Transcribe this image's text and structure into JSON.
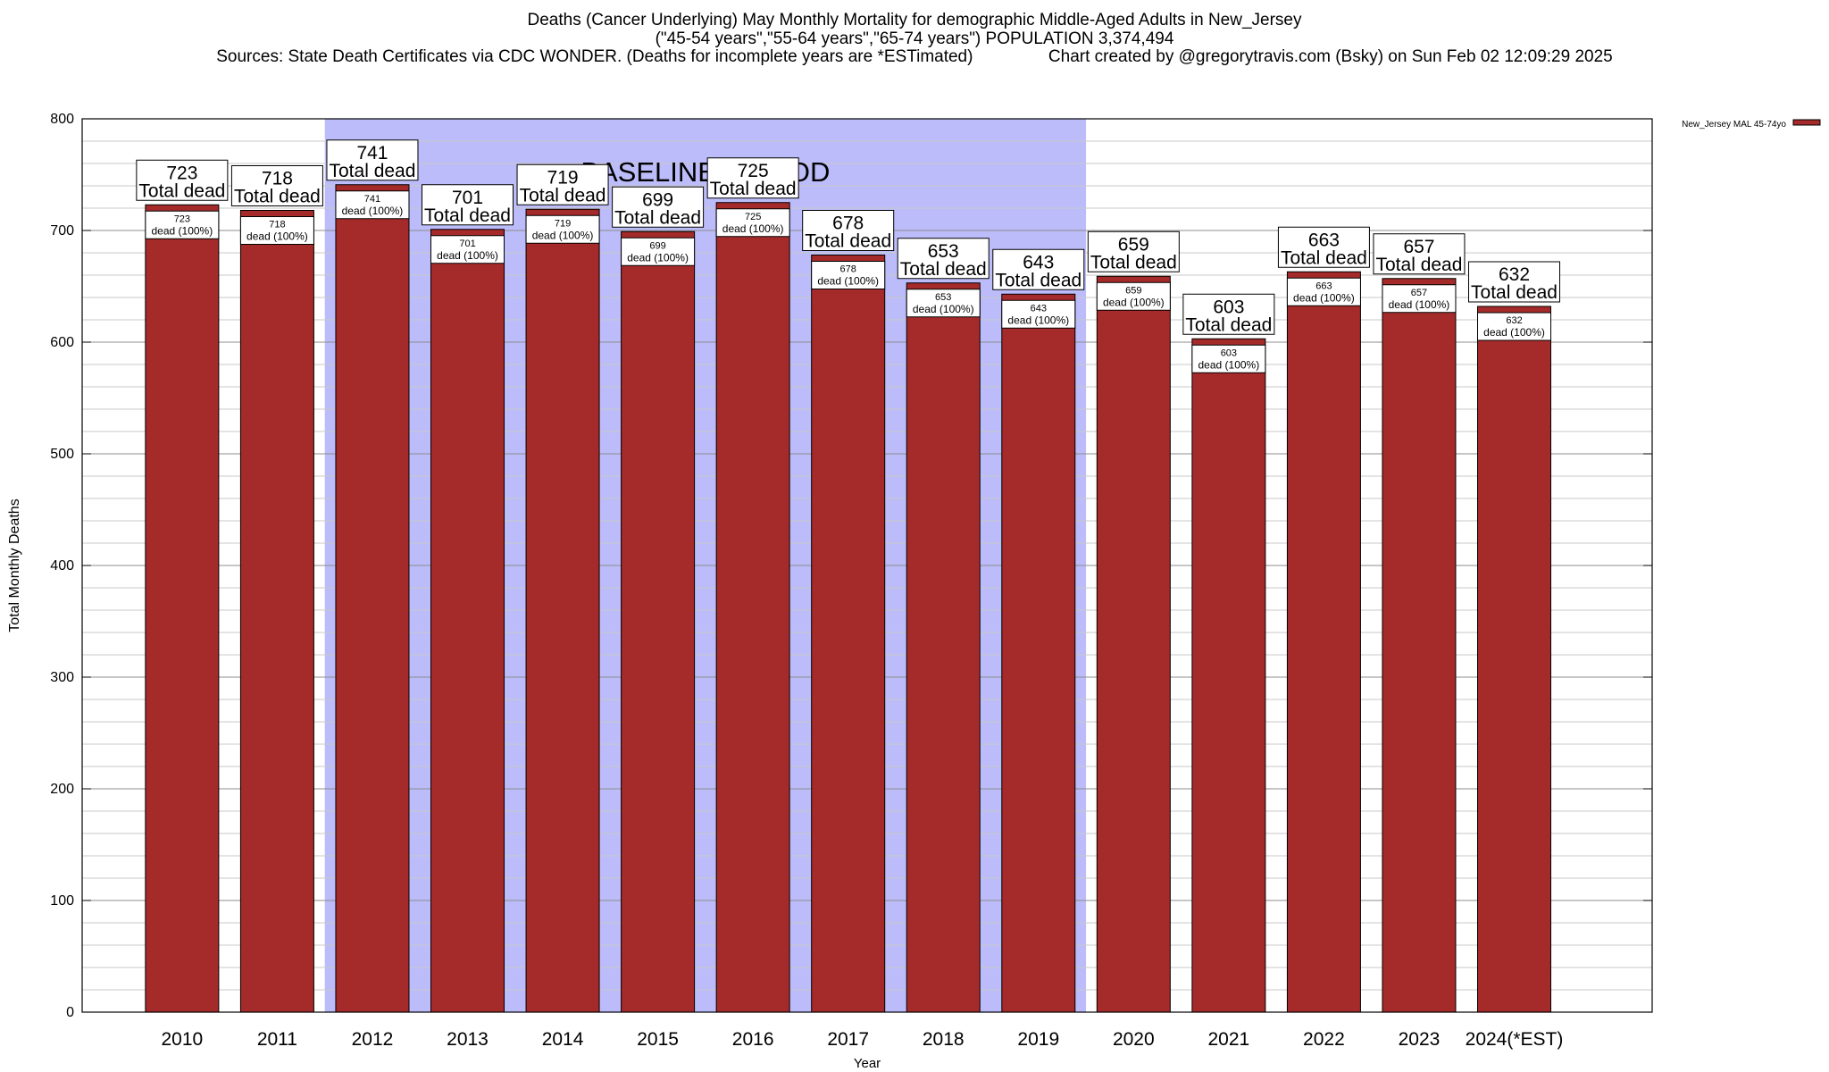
{
  "chart_data": {
    "type": "bar",
    "title_lines": [
      "Deaths (Cancer Underlying) May Monthly Mortality for demographic Middle-Aged Adults in New_Jersey",
      "(\"45-54 years\",\"55-64 years\",\"65-74 years\") POPULATION 3,374,494",
      "Sources: State Death Certificates via CDC WONDER. (Deaths for incomplete years are *ESTimated)                Chart created by @gregorytravis.com (Bsky) on Sun Feb 02 12:09:29 2025"
    ],
    "xlabel": "Year",
    "ylabel": "Total Monthly Deaths",
    "ylim": [
      0,
      800
    ],
    "yticks": [
      0,
      100,
      200,
      300,
      400,
      500,
      600,
      700,
      800
    ],
    "grid": true,
    "legend_placement": "top-right",
    "categories": [
      "2010",
      "2011",
      "2012",
      "2013",
      "2014",
      "2015",
      "2016",
      "2017",
      "2018",
      "2019",
      "2020",
      "2021",
      "2022",
      "2023",
      "2024(*EST)"
    ],
    "series": [
      {
        "name": "New_Jersey MAL 45-74yo",
        "color": "#a52a2a",
        "values": [
          723,
          718,
          741,
          701,
          719,
          699,
          725,
          678,
          653,
          643,
          659,
          603,
          663,
          657,
          632
        ]
      }
    ],
    "top_label_suffix": "Total dead",
    "inner_label_suffix": "dead (100%)",
    "annotation": {
      "text": "BASELINE PERIOD",
      "from_category": "2012",
      "to_category": "2019",
      "color": "#bcbcfa"
    }
  }
}
